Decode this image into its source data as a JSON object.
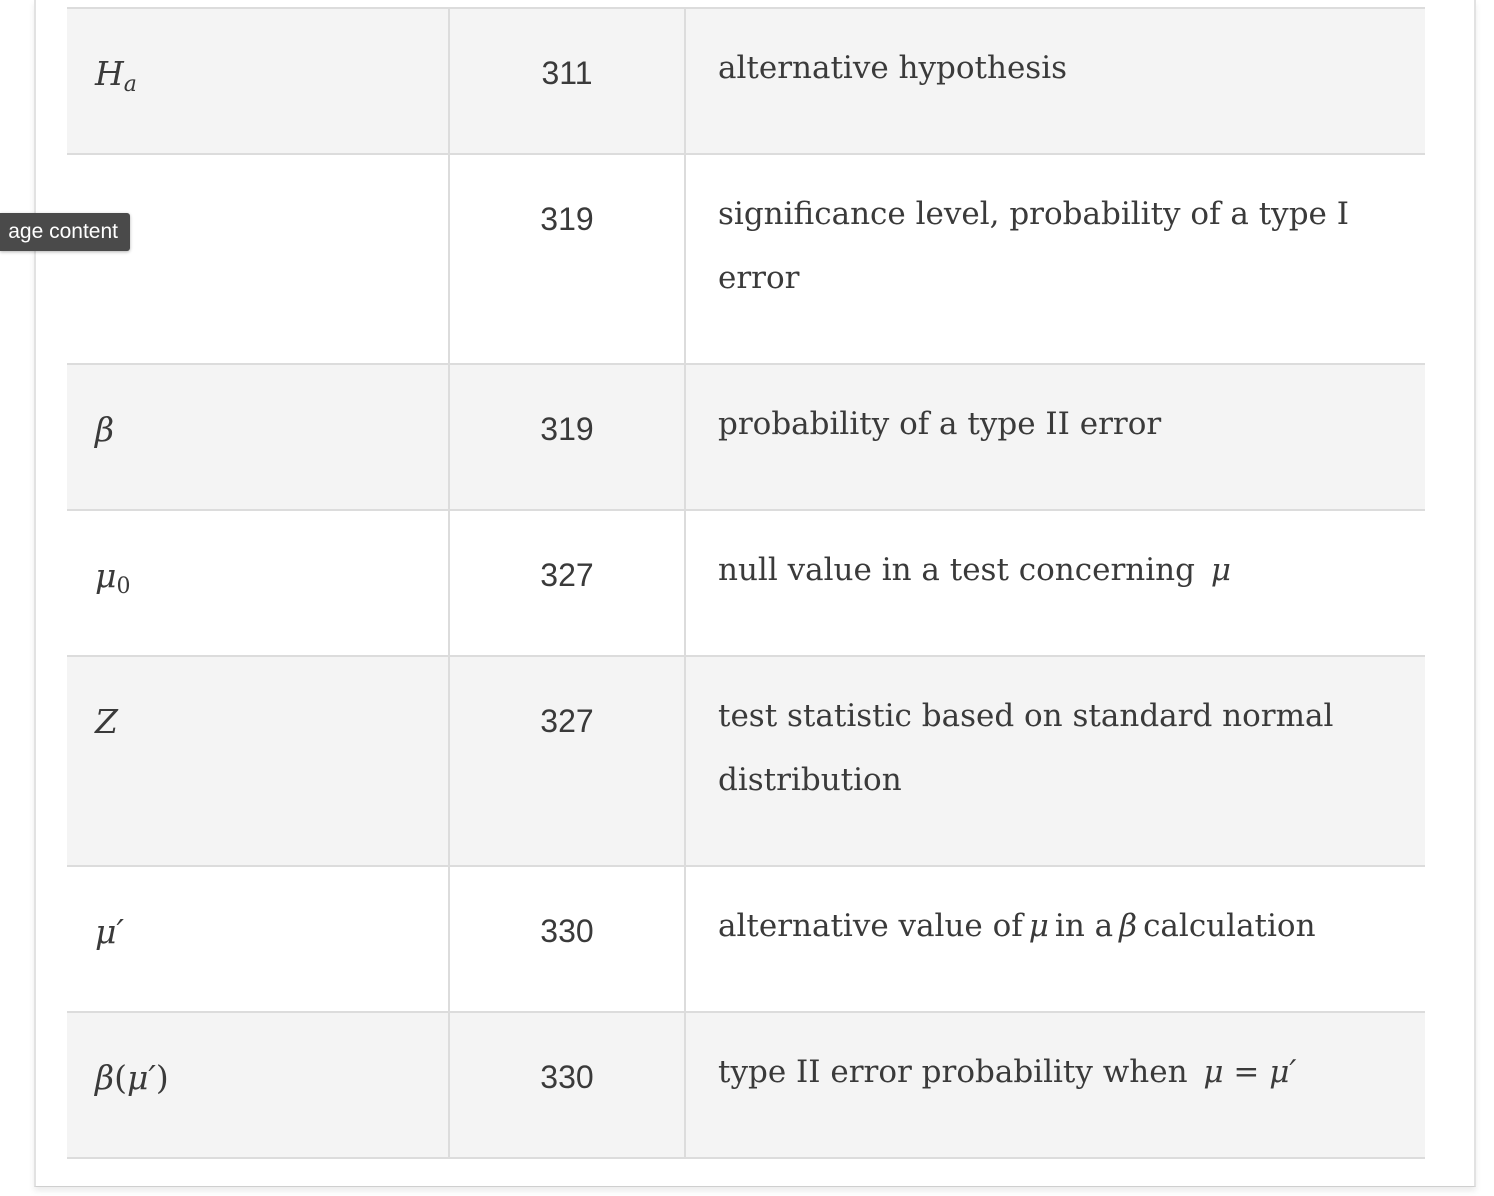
{
  "tooltip": {
    "label": "age content"
  },
  "table": {
    "rows": [
      {
        "page": "311",
        "description": "alternative hypothesis"
      },
      {
        "page": "319",
        "description": "significance level, probability of a type I error"
      },
      {
        "page": "319",
        "description": "probability of a type II error"
      },
      {
        "page": "327",
        "description_before": "null value in a test concerning"
      },
      {
        "page": "327",
        "description": "test statistic based on standard normal distribution"
      },
      {
        "page": "330",
        "description_before": "alternative value of",
        "description_mid": "in a",
        "description_after": "calculation"
      },
      {
        "page": "330",
        "description_before": "type II error probability when"
      }
    ]
  }
}
